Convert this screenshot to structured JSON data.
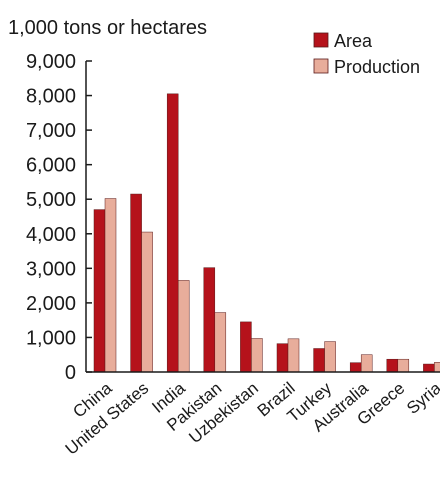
{
  "chart_data": {
    "type": "bar",
    "title": "",
    "ylabel": "1,000 tons or hectares",
    "xlabel": "",
    "categories": [
      "China",
      "United States",
      "India",
      "Pakistan",
      "Uzbekistan",
      "Brazil",
      "Turkey",
      "Australia",
      "Greece",
      "Syria"
    ],
    "series": [
      {
        "name": "Area",
        "color": "#b5121b",
        "values": [
          4700,
          5150,
          8050,
          3020,
          1450,
          820,
          680,
          270,
          370,
          230
        ]
      },
      {
        "name": "Production",
        "color": "#e8ad9b",
        "values": [
          5020,
          4050,
          2650,
          1720,
          970,
          960,
          880,
          500,
          370,
          280
        ]
      }
    ],
    "ylim": [
      0,
      9000
    ],
    "yticks": [
      0,
      1000,
      2000,
      3000,
      4000,
      5000,
      6000,
      7000,
      8000,
      9000
    ],
    "ytick_labels": [
      "0",
      "1,000",
      "2,000",
      "3,000",
      "4,000",
      "5,000",
      "6,000",
      "7,000",
      "8,000",
      "9,000"
    ],
    "grid": false,
    "legend_position": "top-right"
  }
}
